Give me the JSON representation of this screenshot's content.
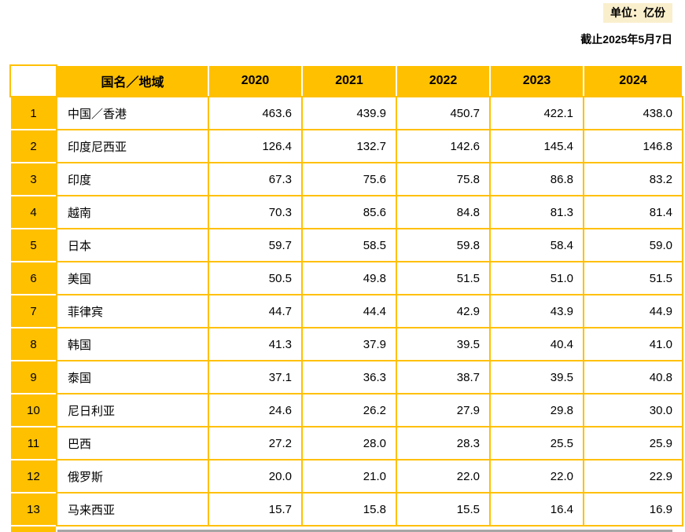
{
  "meta": {
    "unit_badge": "单位：亿份",
    "as_of": "截止2025年5月7日"
  },
  "chart_data": {
    "type": "table",
    "unit": "亿份",
    "as_of": "截止2025年5月7日",
    "columns": [
      "",
      "国名／地域",
      "2020",
      "2021",
      "2022",
      "2023",
      "2024"
    ],
    "rows": [
      {
        "rank": "1",
        "name": "中国／香港",
        "values": [
          "463.6",
          "439.9",
          "450.7",
          "422.1",
          "438.0"
        ],
        "values_num": [
          463.6,
          439.9,
          450.7,
          422.1,
          438.0
        ]
      },
      {
        "rank": "2",
        "name": "印度尼西亚",
        "values": [
          "126.4",
          "132.7",
          "142.6",
          "145.4",
          "146.8"
        ],
        "values_num": [
          126.4,
          132.7,
          142.6,
          145.4,
          146.8
        ]
      },
      {
        "rank": "3",
        "name": "印度",
        "values": [
          "67.3",
          "75.6",
          "75.8",
          "86.8",
          "83.2"
        ],
        "values_num": [
          67.3,
          75.6,
          75.8,
          86.8,
          83.2
        ]
      },
      {
        "rank": "4",
        "name": "越南",
        "values": [
          "70.3",
          "85.6",
          "84.8",
          "81.3",
          "81.4"
        ],
        "values_num": [
          70.3,
          85.6,
          84.8,
          81.3,
          81.4
        ]
      },
      {
        "rank": "5",
        "name": "日本",
        "values": [
          "59.7",
          "58.5",
          "59.8",
          "58.4",
          "59.0"
        ],
        "values_num": [
          59.7,
          58.5,
          59.8,
          58.4,
          59.0
        ]
      },
      {
        "rank": "6",
        "name": "美国",
        "values": [
          "50.5",
          "49.8",
          "51.5",
          "51.0",
          "51.5"
        ],
        "values_num": [
          50.5,
          49.8,
          51.5,
          51.0,
          51.5
        ]
      },
      {
        "rank": "7",
        "name": "菲律宾",
        "values": [
          "44.7",
          "44.4",
          "42.9",
          "43.9",
          "44.9"
        ],
        "values_num": [
          44.7,
          44.4,
          42.9,
          43.9,
          44.9
        ]
      },
      {
        "rank": "8",
        "name": "韩国",
        "values": [
          "41.3",
          "37.9",
          "39.5",
          "40.4",
          "41.0"
        ],
        "values_num": [
          41.3,
          37.9,
          39.5,
          40.4,
          41.0
        ]
      },
      {
        "rank": "9",
        "name": "泰国",
        "values": [
          "37.1",
          "36.3",
          "38.7",
          "39.5",
          "40.8"
        ],
        "values_num": [
          37.1,
          36.3,
          38.7,
          39.5,
          40.8
        ]
      },
      {
        "rank": "10",
        "name": "尼日利亚",
        "values": [
          "24.6",
          "26.2",
          "27.9",
          "29.8",
          "30.0"
        ],
        "values_num": [
          24.6,
          26.2,
          27.9,
          29.8,
          30.0
        ]
      },
      {
        "rank": "11",
        "name": "巴西",
        "values": [
          "27.2",
          "28.0",
          "28.3",
          "25.5",
          "25.9"
        ],
        "values_num": [
          27.2,
          28.0,
          28.3,
          25.5,
          25.9
        ]
      },
      {
        "rank": "12",
        "name": "俄罗斯",
        "values": [
          "20.0",
          "21.0",
          "22.0",
          "22.0",
          "22.9"
        ],
        "values_num": [
          20.0,
          21.0,
          22.0,
          22.0,
          22.9
        ]
      },
      {
        "rank": "13",
        "name": "马来西亚",
        "values": [
          "15.7",
          "15.8",
          "15.5",
          "16.4",
          "16.9"
        ],
        "values_num": [
          15.7,
          15.8,
          15.5,
          16.4,
          16.9
        ]
      }
    ]
  },
  "colors": {
    "gold": "#FFC000",
    "badge_bg": "#FAEFCD",
    "gray_line": "#A6A6A6",
    "text": "#000000"
  }
}
